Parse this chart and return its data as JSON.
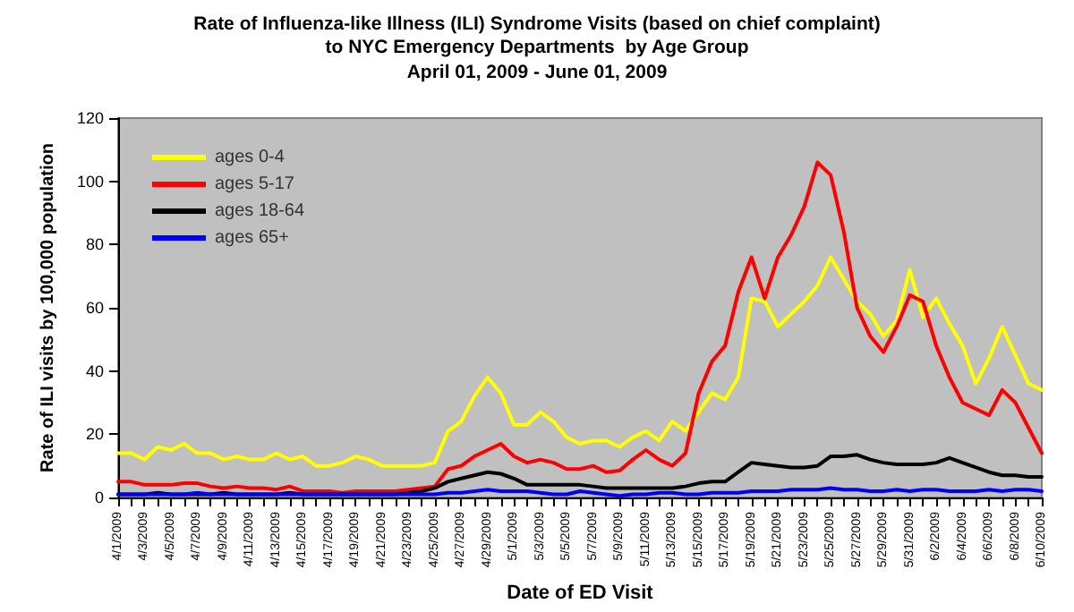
{
  "chart_data": {
    "type": "line",
    "title": "Rate of Influenza-like Illness (ILI) Syndrome Visits (based on chief complaint)\nto NYC Emergency Departments  by Age Group",
    "subtitle": "April 01, 2009 - June 01, 2009",
    "xlabel": "Date of ED Visit",
    "ylabel": "Rate of ILI visits by 100,000 population",
    "categories": [
      "4/1/2009",
      null,
      "4/3/2009",
      null,
      "4/5/2009",
      null,
      "4/7/2009",
      null,
      "4/9/2009",
      null,
      "4/11/2009",
      null,
      "4/13/2009",
      null,
      "4/15/2009",
      null,
      "4/17/2009",
      null,
      "4/19/2009",
      null,
      "4/21/2009",
      null,
      "4/23/2009",
      null,
      "4/25/2009",
      null,
      "4/27/2009",
      null,
      "4/29/2009",
      null,
      "5/1/2009",
      null,
      "5/3/2009",
      null,
      "5/5/2009",
      null,
      "5/7/2009",
      null,
      "5/9/2009",
      null,
      "5/11/2009",
      null,
      "5/13/2009",
      null,
      "5/15/2009",
      null,
      "5/17/2009",
      null,
      "5/19/2009",
      null,
      "5/21/2009",
      null,
      "5/23/2009",
      null,
      "5/25/2009",
      null,
      "5/27/2009",
      null,
      "5/29/2009",
      null,
      "5/31/2009",
      null,
      "6/2/2009",
      null,
      "6/4/2009",
      null,
      "6/6/2009",
      null,
      "6/8/2009",
      null,
      "6/10/2009"
    ],
    "series": [
      {
        "name": "ages 0-4",
        "color": "#ffff00",
        "values": [
          14,
          14,
          12,
          16,
          15,
          17,
          14,
          14,
          12,
          13,
          12,
          12,
          14,
          12,
          13,
          10,
          10,
          11,
          13,
          12,
          10,
          10,
          10,
          10,
          11,
          21,
          24,
          32,
          38,
          33,
          23,
          23,
          27,
          24,
          19,
          17,
          18,
          18,
          16,
          19,
          21,
          18,
          24,
          21,
          27,
          33,
          31,
          38,
          63,
          62,
          54,
          58,
          62,
          67,
          76,
          69,
          62,
          58,
          51,
          56,
          72,
          57,
          63,
          55,
          48,
          36,
          44,
          54,
          45,
          36,
          34
        ]
      },
      {
        "name": "ages 5-17",
        "color": "#ff0000",
        "values": [
          5,
          5,
          4,
          4,
          4,
          4.5,
          4.5,
          3.5,
          3,
          3.5,
          3,
          3,
          2.5,
          3.5,
          2,
          2,
          2,
          1.5,
          2,
          2,
          2,
          2,
          2.5,
          3,
          3.5,
          9,
          10,
          13,
          15,
          17,
          13,
          11,
          12,
          11,
          9,
          9,
          10,
          8,
          8.5,
          12,
          15,
          12,
          10,
          14,
          33,
          43,
          48,
          65,
          76,
          63,
          76,
          83,
          92,
          106,
          102,
          84,
          60,
          51,
          46,
          54,
          64,
          62,
          48,
          38,
          30,
          28,
          26,
          34,
          30,
          22,
          14
        ]
      },
      {
        "name": "ages 18-64",
        "color": "#000000",
        "values": [
          1,
          1,
          1,
          1.5,
          1,
          1,
          1,
          1,
          1.5,
          1,
          1,
          1,
          1,
          1.5,
          1,
          1,
          1,
          1,
          1,
          1,
          1,
          1,
          1.5,
          2,
          3,
          5,
          6,
          7,
          8,
          7.5,
          6,
          4,
          4,
          4,
          4,
          4,
          3.5,
          3,
          3,
          3,
          3,
          3,
          3,
          3.5,
          4.5,
          5,
          5,
          8,
          11,
          10.5,
          10,
          9.5,
          9.5,
          10,
          13,
          13,
          13.5,
          12,
          11,
          10.5,
          10.5,
          10.5,
          11,
          12.5,
          11,
          9.5,
          8,
          7,
          7,
          6.5,
          6.5
        ]
      },
      {
        "name": "ages 65+",
        "color": "#0000ff",
        "values": [
          1,
          1,
          1,
          1,
          1,
          1,
          1.5,
          1,
          1,
          1,
          1,
          1,
          1,
          1,
          1,
          1,
          1,
          1,
          1,
          1,
          1,
          1,
          1,
          1,
          1,
          1.5,
          1.5,
          2,
          2.5,
          2,
          2,
          2,
          1.5,
          1,
          1,
          2,
          1.5,
          1,
          0.5,
          1,
          1,
          1.5,
          1.5,
          1,
          1,
          1.5,
          1.5,
          1.5,
          2,
          2,
          2,
          2.5,
          2.5,
          2.5,
          3,
          2.5,
          2.5,
          2,
          2,
          2.5,
          2,
          2.5,
          2.5,
          2,
          2,
          2,
          2.5,
          2,
          2.5,
          2.5,
          2
        ]
      }
    ],
    "ylim": [
      0,
      120
    ],
    "yticks": [
      0,
      20,
      40,
      60,
      80,
      100,
      120
    ],
    "legend": "top left",
    "marker": "none",
    "line_style": "solid"
  }
}
